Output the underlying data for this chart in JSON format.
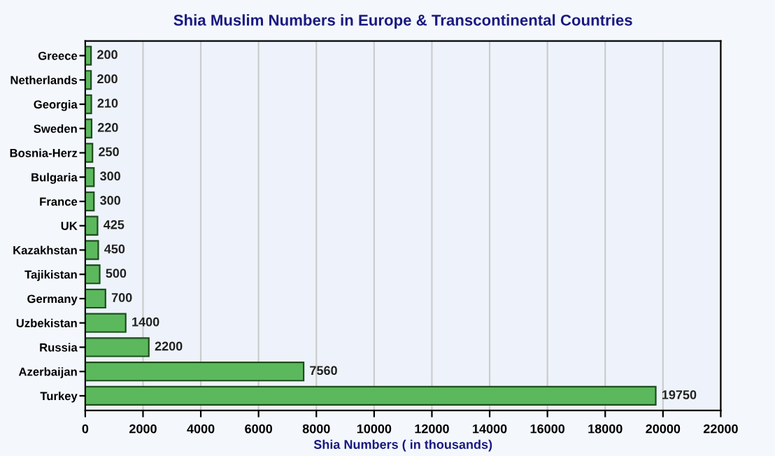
{
  "chart_data": {
    "type": "bar",
    "orientation": "horizontal",
    "title": "Shia Muslim Numbers in Europe & Transcontinental Countries",
    "xlabel": "Shia Numbers ( in thousands)",
    "categories": [
      "Greece",
      "Netherlands",
      "Georgia",
      "Sweden",
      "Bosnia-Herz",
      "Bulgaria",
      "France",
      "UK",
      "Kazakhstan",
      "Tajikistan",
      "Germany",
      "Uzbekistan",
      "Russia",
      "Azerbaijan",
      "Turkey"
    ],
    "values": [
      200,
      200,
      210,
      220,
      250,
      300,
      300,
      425,
      450,
      500,
      700,
      1400,
      2200,
      7560,
      19750
    ],
    "color": "#5cb85c",
    "data_labels": true,
    "xlim": [
      0,
      22000
    ],
    "xticks": [
      0,
      2000,
      4000,
      6000,
      8000,
      10000,
      12000,
      14000,
      16000,
      18000,
      20000,
      22000
    ],
    "grid": "x"
  }
}
